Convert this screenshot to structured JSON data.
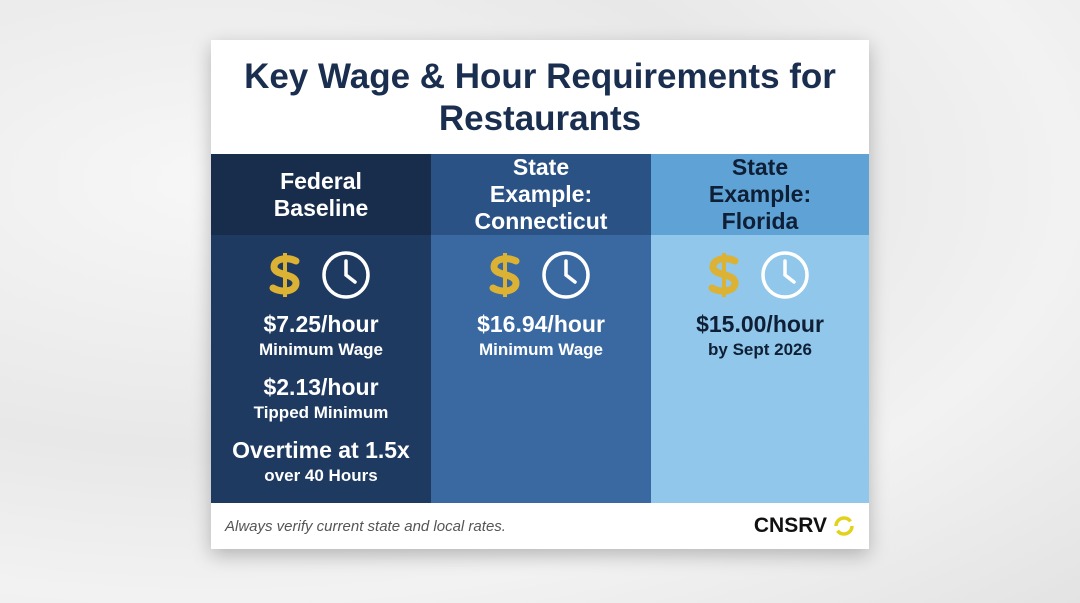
{
  "header": {
    "title": "Key Wage & Hour Requirements for Restaurants"
  },
  "columns": [
    {
      "heading": "Federal Baseline",
      "items": [
        {
          "amount": "$7.25/hour",
          "label": "Minimum Wage"
        },
        {
          "amount": "$2.13/hour",
          "label": "Tipped Minimum"
        },
        {
          "amount": "Overtime at 1.5x",
          "label": "over 40 Hours"
        }
      ]
    },
    {
      "heading": "State Example: Connecticut",
      "items": [
        {
          "amount": "$16.94/hour",
          "label": "Minimum Wage"
        }
      ]
    },
    {
      "heading": "State Example: Florida",
      "items": [
        {
          "amount": "$15.00/hour",
          "label": "by Sept 2026"
        }
      ]
    }
  ],
  "footer": {
    "note": "Always verify current state and local rates.",
    "brand": "CNSRV"
  }
}
